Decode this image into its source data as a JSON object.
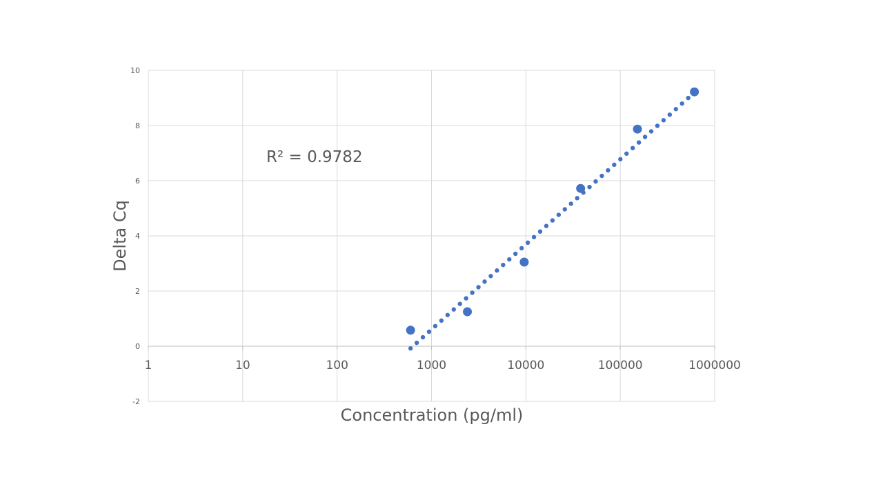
{
  "chart_data": {
    "type": "scatter",
    "title": "",
    "xlabel": "Concentration (pg/ml)",
    "ylabel": "Delta Cq",
    "x_scale": "log",
    "xlim": [
      1,
      1000000
    ],
    "ylim": [
      -2,
      10
    ],
    "x_tick_labels": [
      "1",
      "10",
      "100",
      "1000",
      "10000",
      "100000",
      "1000000"
    ],
    "y_tick_labels": [
      "-2",
      "0",
      "2",
      "4",
      "6",
      "8",
      "10"
    ],
    "grid": true,
    "legend": "none",
    "series": [
      {
        "points": [
          {
            "x": 600,
            "y": 0.58
          },
          {
            "x": 2400,
            "y": 1.25
          },
          {
            "x": 9600,
            "y": 3.05
          },
          {
            "x": 38000,
            "y": 5.72
          },
          {
            "x": 152000,
            "y": 7.87
          },
          {
            "x": 610000,
            "y": 9.22
          }
        ]
      }
    ],
    "trendline": {
      "type": "log",
      "x_start": 600,
      "y_start": -0.08,
      "x_end": 610000,
      "y_end": 9.2,
      "style": "dotted"
    },
    "annotations": [
      {
        "text": "R² = 0.9782"
      }
    ]
  },
  "colors": {
    "marker": "#4472C4",
    "grid": "#D9D9D9",
    "text": "#595959"
  }
}
